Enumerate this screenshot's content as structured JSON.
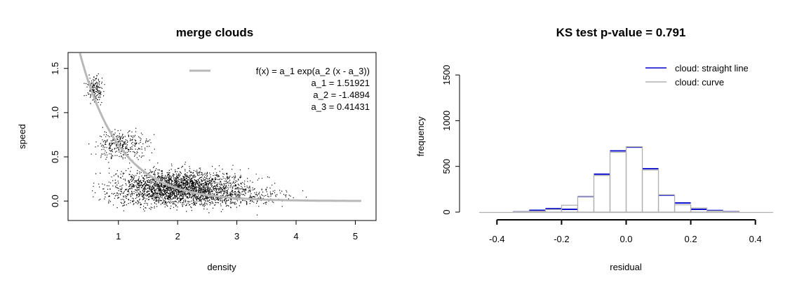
{
  "colors": {
    "fit_curve": "#b8b8b8",
    "points": "#000000",
    "straight_line": "#0000cc",
    "curve": "#b0b0b0"
  },
  "chart_data": [
    {
      "type": "scatter",
      "title": "merge clouds",
      "xlabel": "density",
      "ylabel": "speed",
      "xlim": [
        0.15,
        5.35
      ],
      "ylim": [
        -0.22,
        1.68
      ],
      "x_ticks": [
        "1",
        "2",
        "3",
        "4",
        "5"
      ],
      "y_ticks": [
        "0.0",
        "0.5",
        "1.0",
        "1.5"
      ],
      "legend_position": "top-right",
      "legend": {
        "formula": "f(x) = a_1 exp(a_2 (x - a_3))",
        "params": [
          "a_1 =  1.51921",
          "a_2 =  -1.4894",
          "a_3 =  0.41431"
        ]
      },
      "fit": {
        "a_1": 1.51921,
        "a_2": -1.4894,
        "a_3": 0.41431,
        "x_range": [
          0.35,
          5.1
        ]
      },
      "clusters": [
        {
          "x_center": 0.6,
          "x_spread": 0.07,
          "y_center": 1.27,
          "y_spread": 0.07,
          "count": 160
        },
        {
          "x_center": 1.05,
          "x_spread": 0.22,
          "y_center": 0.63,
          "y_spread": 0.08,
          "count": 320
        },
        {
          "x_center": 2.05,
          "x_spread": 0.55,
          "y_center": 0.15,
          "y_spread": 0.1,
          "count": 2600
        },
        {
          "x_center": 3.2,
          "x_spread": 0.4,
          "y_center": 0.06,
          "y_spread": 0.05,
          "count": 180
        }
      ]
    },
    {
      "type": "histogram",
      "title": "KS test p-value = 0.791",
      "xlabel": "residual",
      "ylabel": "frequency",
      "xlim": [
        -0.455,
        0.455
      ],
      "ylim": [
        0,
        1700
      ],
      "x_ticks": [
        "-0.4",
        "-0.2",
        "0.0",
        "0.2",
        "0.4"
      ],
      "y_ticks": [
        "0",
        "500",
        "1000",
        "1500"
      ],
      "legend_position": "top-right",
      "bin_edges": [
        -0.35,
        -0.3,
        -0.25,
        -0.2,
        -0.15,
        -0.1,
        -0.05,
        0.0,
        0.05,
        0.1,
        0.15,
        0.2,
        0.25,
        0.3,
        0.35
      ],
      "series": [
        {
          "name": "cloud: straight line",
          "values": [
            3,
            20,
            38,
            30,
            170,
            415,
            670,
            710,
            475,
            185,
            100,
            30,
            18,
            5
          ]
        },
        {
          "name": "cloud: curve",
          "values": [
            3,
            10,
            28,
            75,
            170,
            400,
            655,
            715,
            460,
            190,
            80,
            45,
            13,
            4
          ]
        }
      ]
    }
  ]
}
